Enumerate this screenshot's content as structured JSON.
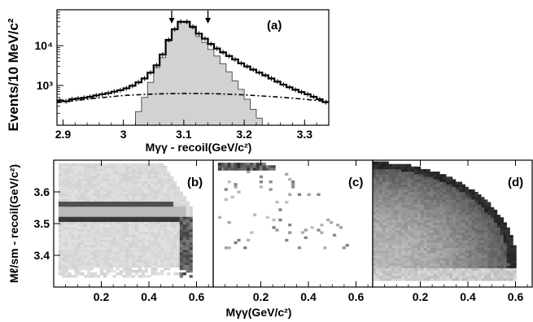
{
  "chart_data": [
    {
      "type": "line",
      "panel_label": "(a)",
      "xlabel": "Mγγ - recoil(GeV/c²)",
      "ylabel": "Events/10 MeV/c²",
      "xlim": [
        2.89,
        3.34
      ],
      "ylim": [
        100,
        80000
      ],
      "y_scale": "log",
      "x_ticks": [
        2.9,
        3.0,
        3.1,
        3.2,
        3.3
      ],
      "x_tick_labels": [
        "2.9",
        "3",
        "3.1",
        "3.2",
        "3.3"
      ],
      "y_ticks": [
        1000,
        10000
      ],
      "y_tick_labels": [
        "10³",
        "10⁴"
      ],
      "arrows_at_x": [
        3.08,
        3.14
      ],
      "grid": false,
      "series": [
        {
          "style": "solid-histogram",
          "x": [
            2.895,
            2.905,
            2.915,
            2.925,
            2.935,
            2.945,
            2.955,
            2.965,
            2.975,
            2.985,
            2.995,
            3.005,
            3.015,
            3.025,
            3.035,
            3.045,
            3.055,
            3.065,
            3.075,
            3.085,
            3.095,
            3.105,
            3.115,
            3.125,
            3.135,
            3.145,
            3.155,
            3.165,
            3.175,
            3.185,
            3.195,
            3.205,
            3.215,
            3.225,
            3.235,
            3.245,
            3.255,
            3.265,
            3.275,
            3.285,
            3.295,
            3.305,
            3.315,
            3.325,
            3.335
          ],
          "values": [
            420,
            400,
            450,
            470,
            490,
            520,
            560,
            600,
            640,
            700,
            760,
            850,
            980,
            1200,
            1500,
            2100,
            3200,
            6000,
            14000,
            26000,
            40000,
            40000,
            30000,
            20000,
            15000,
            11000,
            8500,
            6800,
            5500,
            4500,
            3600,
            3000,
            2500,
            2100,
            1800,
            1500,
            1250,
            1050,
            900,
            780,
            680,
            600,
            520,
            450,
            380
          ]
        },
        {
          "style": "shaded-histogram",
          "x": [
            3.025,
            3.035,
            3.045,
            3.055,
            3.065,
            3.075,
            3.085,
            3.095,
            3.105,
            3.115,
            3.125,
            3.135,
            3.145,
            3.155,
            3.165,
            3.175,
            3.185,
            3.195,
            3.205,
            3.215,
            3.225
          ],
          "values": [
            220,
            500,
            1200,
            2800,
            5000,
            13000,
            25000,
            39000,
            38000,
            28000,
            17000,
            12000,
            8000,
            5500,
            3500,
            2200,
            1300,
            800,
            450,
            250,
            150
          ]
        },
        {
          "style": "dashed-dotted-curve",
          "x": [
            2.89,
            2.95,
            3.0,
            3.05,
            3.1,
            3.15,
            3.2,
            3.25,
            3.3,
            3.34
          ],
          "values": [
            370,
            470,
            560,
            610,
            630,
            620,
            580,
            520,
            450,
            390
          ]
        }
      ]
    },
    {
      "type": "heatmap",
      "panel_label": "(b)",
      "xlabel": "Mγγ(GeV/c²)",
      "ylabel": "Mℓ/sm - recoil(GeV/c²)",
      "xlim": [
        0,
        0.67
      ],
      "ylim": [
        3.3,
        3.7
      ],
      "x_tick_labels": [
        "0.2",
        "0.4",
        "0.6"
      ],
      "y_tick_labels": [
        "3.4",
        "3.5",
        "3.6"
      ],
      "bands": {
        "horizontal_at_y": [
          3.51,
          3.56
        ],
        "vertical_at_x": 0.55
      }
    },
    {
      "type": "heatmap",
      "panel_label": "(c)",
      "xlabel": "Mγγ(GeV/c²)",
      "xlim": [
        0,
        0.67
      ],
      "ylim": [
        3.3,
        3.7
      ],
      "x_tick_labels": [
        "0.2",
        "0.4",
        "0.6"
      ]
    },
    {
      "type": "heatmap",
      "panel_label": "(d)",
      "xlabel": "Mγγ(GeV/c²)",
      "xlim": [
        0,
        0.67
      ],
      "ylim": [
        3.3,
        3.7
      ],
      "x_tick_labels": [
        "0.2",
        "0.4",
        "0.6"
      ]
    }
  ]
}
